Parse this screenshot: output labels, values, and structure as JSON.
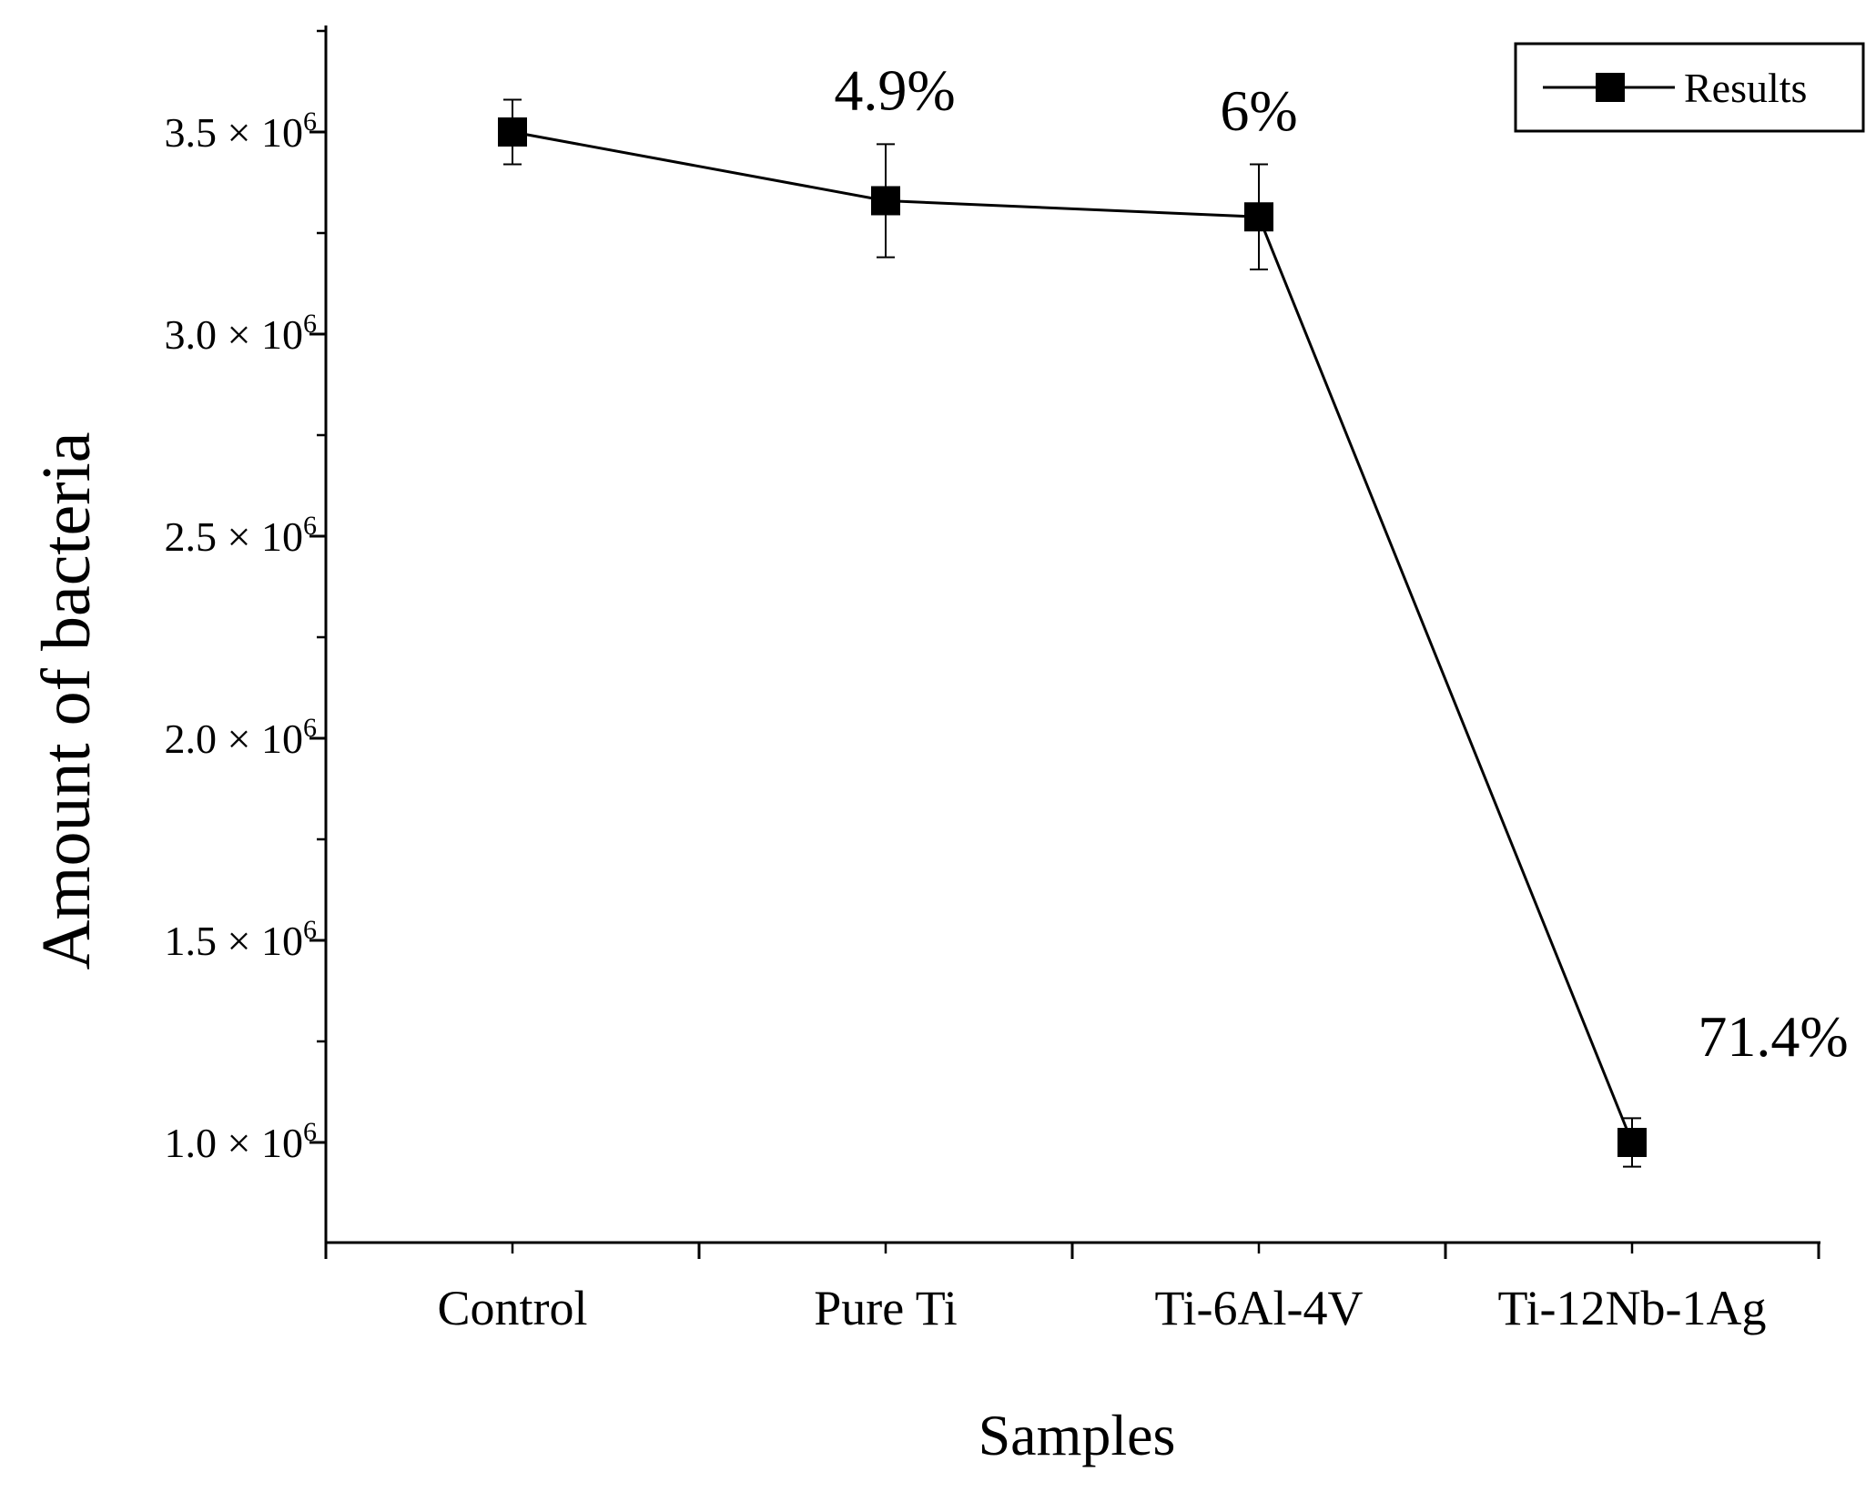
{
  "chart_data": {
    "type": "line",
    "title": "",
    "xlabel": "Samples",
    "ylabel": "Amount of bacteria",
    "categories": [
      "Control",
      "Pure Ti",
      "Ti-6Al-4V",
      "Ti-12Nb-1Ag"
    ],
    "series": [
      {
        "name": "Results",
        "values": [
          3500000,
          3330000,
          3290000,
          1000000
        ],
        "errors": [
          80000,
          140000,
          130000,
          60000
        ],
        "marker": "square",
        "color": "#000000"
      }
    ],
    "annotations": [
      "",
      "4.9%",
      "6%",
      "71.4%"
    ],
    "ylim": [
      750000,
      3750000
    ],
    "yticks": [
      {
        "value": 1000000,
        "mantissa": "1.0",
        "times": "×",
        "base": "10",
        "exp": "6"
      },
      {
        "value": 1500000,
        "mantissa": "1.5",
        "times": "×",
        "base": "10",
        "exp": "6"
      },
      {
        "value": 2000000,
        "mantissa": "2.0",
        "times": "×",
        "base": "10",
        "exp": "6"
      },
      {
        "value": 2500000,
        "mantissa": "2.5",
        "times": "×",
        "base": "10",
        "exp": "6"
      },
      {
        "value": 3000000,
        "mantissa": "3.0",
        "times": "×",
        "base": "10",
        "exp": "6"
      },
      {
        "value": 3500000,
        "mantissa": "3.5",
        "times": "×",
        "base": "10",
        "exp": "6"
      }
    ],
    "legend": {
      "position": "top-right",
      "label": "Results"
    },
    "grid": false
  }
}
